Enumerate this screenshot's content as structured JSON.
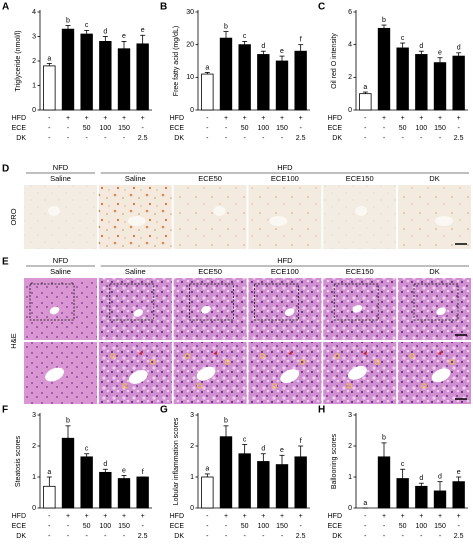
{
  "chart_data": [
    {
      "type": "bar",
      "panel_label": "A",
      "y_label": "Triglyceride (nmol/l)",
      "ylim": [
        0,
        4
      ],
      "yticks": [
        0,
        1,
        2,
        3,
        4
      ],
      "values": [
        1.8,
        3.3,
        3.1,
        2.8,
        2.5,
        2.7
      ],
      "errors": [
        0.1,
        0.15,
        0.15,
        0.2,
        0.3,
        0.35
      ],
      "annotations": [
        "a",
        "b",
        "c",
        "d",
        "e",
        "e"
      ],
      "bar_colors": [
        "#ffffff",
        "#000000",
        "#000000",
        "#000000",
        "#000000",
        "#000000"
      ],
      "treatments": [
        {
          "label": "HFD",
          "cells": [
            "-",
            "+",
            "+",
            "+",
            "+",
            "+"
          ]
        },
        {
          "label": "ECE",
          "cells": [
            "-",
            "-",
            50,
            100,
            150,
            "-"
          ]
        },
        {
          "label": "DK",
          "cells": [
            "-",
            "-",
            "-",
            "-",
            "-",
            2.5
          ]
        }
      ]
    },
    {
      "type": "bar",
      "panel_label": "B",
      "y_label": "Free fatty acid (mg/dL)",
      "ylim": [
        0,
        30
      ],
      "yticks": [
        0,
        10,
        20,
        30
      ],
      "values": [
        11,
        22,
        20,
        17,
        15,
        18
      ],
      "errors": [
        0.5,
        2,
        1,
        1,
        1.5,
        2
      ],
      "annotations": [
        "a",
        "b",
        "c",
        "d",
        "e",
        "f"
      ],
      "bar_colors": [
        "#ffffff",
        "#000000",
        "#000000",
        "#000000",
        "#000000",
        "#000000"
      ],
      "treatments": [
        {
          "label": "HFD",
          "cells": [
            "-",
            "+",
            "+",
            "+",
            "+",
            "+"
          ]
        },
        {
          "label": "ECE",
          "cells": [
            "-",
            "-",
            50,
            100,
            150,
            "-"
          ]
        },
        {
          "label": "DK",
          "cells": [
            "-",
            "-",
            "-",
            "-",
            "-",
            2.5
          ]
        }
      ]
    },
    {
      "type": "bar",
      "panel_label": "C",
      "y_label": "Oil red O intensity",
      "ylim": [
        0,
        6
      ],
      "yticks": [
        0,
        2,
        4,
        6
      ],
      "values": [
        1.0,
        5.0,
        3.8,
        3.4,
        2.9,
        3.3
      ],
      "errors": [
        0.1,
        0.2,
        0.3,
        0.2,
        0.3,
        0.2
      ],
      "annotations": [
        "a",
        "b",
        "c",
        "d",
        "e",
        "d"
      ],
      "bar_colors": [
        "#ffffff",
        "#000000",
        "#000000",
        "#000000",
        "#000000",
        "#000000"
      ],
      "treatments": [
        {
          "label": "HFD",
          "cells": [
            "-",
            "+",
            "+",
            "+",
            "+",
            "+"
          ]
        },
        {
          "label": "ECE",
          "cells": [
            "-",
            "-",
            50,
            100,
            150,
            "-"
          ]
        },
        {
          "label": "DK",
          "cells": [
            "-",
            "-",
            "-",
            "-",
            "-",
            2.5
          ]
        }
      ]
    },
    {
      "type": "bar",
      "panel_label": "F",
      "y_label": "Steatosis scores",
      "ylim": [
        0,
        3
      ],
      "yticks": [
        0,
        1,
        2,
        3
      ],
      "values": [
        0.7,
        2.25,
        1.65,
        1.15,
        0.95,
        1.0
      ],
      "errors": [
        0.3,
        0.4,
        0.1,
        0.1,
        0.1,
        0
      ],
      "annotations": [
        "a",
        "b",
        "c",
        "d",
        "e",
        "f"
      ],
      "bar_colors": [
        "#ffffff",
        "#000000",
        "#000000",
        "#000000",
        "#000000",
        "#000000"
      ],
      "treatments": [
        {
          "label": "HFD",
          "cells": [
            "-",
            "+",
            "+",
            "+",
            "+",
            "+"
          ]
        },
        {
          "label": "ECE",
          "cells": [
            "-",
            "-",
            50,
            100,
            150,
            "-"
          ]
        },
        {
          "label": "DK",
          "cells": [
            "-",
            "-",
            "-",
            "-",
            "-",
            2.5
          ]
        }
      ]
    },
    {
      "type": "bar",
      "panel_label": "G",
      "y_label": "Lobular inflammation scores",
      "ylim": [
        0,
        3
      ],
      "yticks": [
        0,
        1,
        2,
        3
      ],
      "values": [
        1.0,
        2.3,
        1.75,
        1.5,
        1.4,
        1.65
      ],
      "errors": [
        0.1,
        0.35,
        0.3,
        0.25,
        0.3,
        0.35
      ],
      "annotations": [
        "a",
        "b",
        "c",
        "d",
        "e",
        "f"
      ],
      "bar_colors": [
        "#ffffff",
        "#000000",
        "#000000",
        "#000000",
        "#000000",
        "#000000"
      ],
      "treatments": [
        {
          "label": "HFD",
          "cells": [
            "-",
            "+",
            "+",
            "+",
            "+",
            "+"
          ]
        },
        {
          "label": "ECE",
          "cells": [
            "-",
            "-",
            50,
            100,
            150,
            "-"
          ]
        },
        {
          "label": "DK",
          "cells": [
            "-",
            "-",
            "-",
            "-",
            "-",
            2.5
          ]
        }
      ]
    },
    {
      "type": "bar",
      "panel_label": "H",
      "y_label": "Ballooning scores",
      "ylim": [
        0,
        3
      ],
      "yticks": [
        0,
        1,
        2,
        3
      ],
      "values": [
        0,
        1.65,
        0.95,
        0.7,
        0.55,
        0.85
      ],
      "errors": [
        0,
        0.45,
        0.3,
        0.1,
        0.3,
        0.15
      ],
      "annotations": [
        "a",
        "b",
        "c",
        "d",
        "d",
        "e"
      ],
      "bar_colors": [
        "#ffffff",
        "#000000",
        "#000000",
        "#000000",
        "#000000",
        "#000000"
      ],
      "treatments": [
        {
          "label": "HFD",
          "cells": [
            "-",
            "+",
            "+",
            "+",
            "+",
            "+"
          ]
        },
        {
          "label": "ECE",
          "cells": [
            "-",
            "-",
            50,
            100,
            150,
            "-"
          ]
        },
        {
          "label": "DK",
          "cells": [
            "-",
            "-",
            "-",
            "-",
            "-",
            2.5
          ]
        }
      ]
    }
  ],
  "image_panels": [
    {
      "panel_label": "D",
      "stain": "ORO",
      "groups": [
        "NFD",
        "HFD"
      ],
      "columns": [
        "Saline",
        "Saline",
        "ECE50",
        "ECE100",
        "ECE150",
        "DK"
      ]
    },
    {
      "panel_label": "E",
      "stain": "H&E",
      "groups": [
        "NFD",
        "HFD"
      ],
      "columns": [
        "Saline",
        "Saline",
        "ECE50",
        "ECE100",
        "ECE150",
        "DK"
      ]
    }
  ]
}
